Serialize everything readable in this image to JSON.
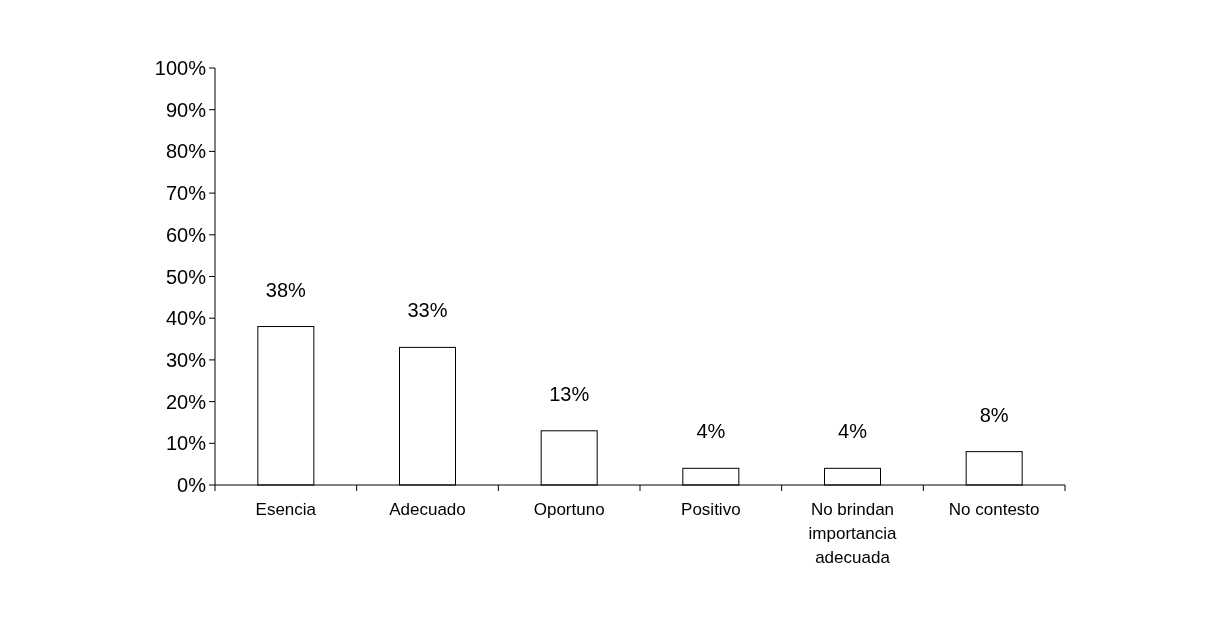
{
  "chart_data": {
    "type": "bar",
    "categories": [
      "Esencia",
      "Adecuado",
      "Oportuno",
      "Positivo",
      "No brindan importancia adecuada",
      "No contesto"
    ],
    "values": [
      38,
      33,
      13,
      4,
      4,
      8
    ],
    "value_labels": [
      "38%",
      "33%",
      "13%",
      "4%",
      "4%",
      "8%"
    ],
    "color": "#ffffff",
    "ylim": [
      0,
      100
    ],
    "yticks": [
      {
        "value": 0,
        "label": "0%"
      },
      {
        "value": 10,
        "label": "10%"
      },
      {
        "value": 20,
        "label": "20%"
      },
      {
        "value": 30,
        "label": "30%"
      },
      {
        "value": 40,
        "label": "40%"
      },
      {
        "value": 50,
        "label": "50%"
      },
      {
        "value": 60,
        "label": "60%"
      },
      {
        "value": 70,
        "label": "70%"
      },
      {
        "value": 80,
        "label": "80%"
      },
      {
        "value": 90,
        "label": "90%"
      },
      {
        "value": 100,
        "label": "100%"
      }
    ],
    "grid": false
  }
}
